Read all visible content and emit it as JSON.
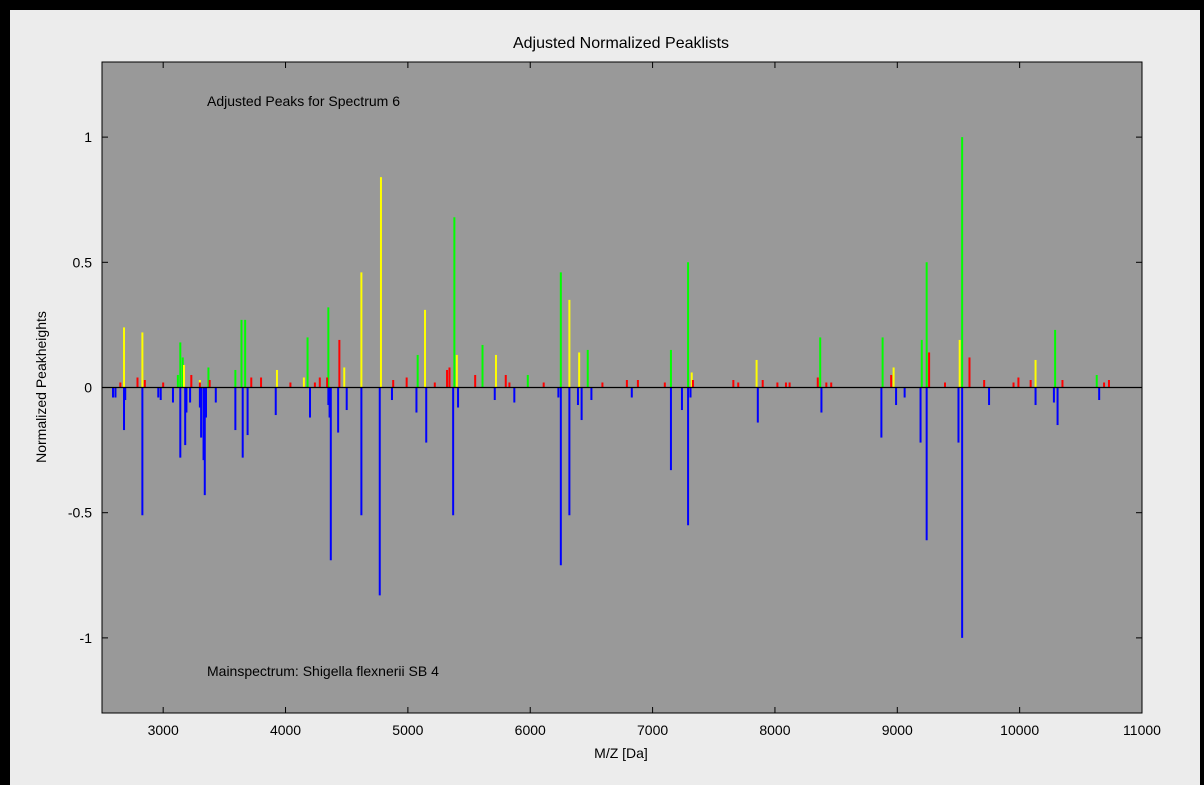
{
  "chart_data": {
    "type": "bar",
    "title": "Adjusted Normalized Peaklists",
    "xlabel": "M/Z [Da]",
    "ylabel": "Normalized Peakheights",
    "xlim": [
      2500,
      11000
    ],
    "ylim": [
      -1.3,
      1.3
    ],
    "xticks": [
      "3000",
      "4000",
      "5000",
      "6000",
      "7000",
      "8000",
      "9000",
      "10000",
      "11000"
    ],
    "xtick_values": [
      3000,
      4000,
      5000,
      6000,
      7000,
      8000,
      9000,
      10000,
      11000
    ],
    "yticks": [
      "1",
      "0.5",
      "0",
      "-0.5",
      "-1"
    ],
    "ytick_values": [
      1,
      0.5,
      0,
      -0.5,
      -1
    ],
    "grid": false,
    "annotations": {
      "top": "Adjusted Peaks for Spectrum 6",
      "bottom": "Mainspectrum: Shigella flexnerii SB 4"
    },
    "background_color": "#999999",
    "series": [
      {
        "color": "#00ff00",
        "x": [
          3120,
          3140,
          3160,
          3370,
          3590,
          3640,
          3670,
          4180,
          4350,
          5080,
          5380,
          5610,
          5980,
          6250,
          6470,
          7150,
          7290,
          8370,
          8880,
          9200,
          9240,
          9530,
          10290,
          10630
        ],
        "y": [
          0.05,
          0.18,
          0.12,
          0.08,
          0.07,
          0.27,
          0.27,
          0.2,
          0.32,
          0.13,
          0.68,
          0.17,
          0.05,
          0.46,
          0.15,
          0.15,
          0.5,
          0.2,
          0.2,
          0.19,
          0.5,
          1.0,
          0.23,
          0.05
        ]
      },
      {
        "color": "#ffff00",
        "x": [
          2680,
          2830,
          3170,
          3300,
          3930,
          4150,
          4480,
          4620,
          4780,
          5140,
          5400,
          5720,
          6320,
          6400,
          7320,
          7850,
          8970,
          9510,
          10130
        ],
        "y": [
          0.24,
          0.22,
          0.09,
          0.03,
          0.07,
          0.04,
          0.08,
          0.46,
          0.84,
          0.31,
          0.13,
          0.13,
          0.35,
          0.14,
          0.06,
          0.11,
          0.08,
          0.19,
          0.11
        ]
      },
      {
        "color": "#ff0000",
        "x": [
          2650,
          2790,
          2850,
          3000,
          3230,
          3300,
          3380,
          3720,
          3800,
          4040,
          4240,
          4280,
          4340,
          4440,
          4880,
          4990,
          5220,
          5320,
          5340,
          5550,
          5800,
          5830,
          6110,
          6590,
          6790,
          6880,
          7100,
          7330,
          7660,
          7700,
          7900,
          8020,
          8090,
          8120,
          8350,
          8420,
          8460,
          8950,
          9260,
          9390,
          9590,
          9710,
          9950,
          9990,
          10090,
          10350,
          10690,
          10730
        ],
        "y": [
          0.02,
          0.04,
          0.03,
          0.02,
          0.05,
          0.02,
          0.03,
          0.04,
          0.04,
          0.02,
          0.02,
          0.04,
          0.04,
          0.19,
          0.03,
          0.04,
          0.02,
          0.07,
          0.08,
          0.05,
          0.05,
          0.02,
          0.02,
          0.02,
          0.03,
          0.03,
          0.02,
          0.03,
          0.03,
          0.02,
          0.03,
          0.02,
          0.02,
          0.02,
          0.04,
          0.02,
          0.02,
          0.05,
          0.14,
          0.02,
          0.12,
          0.03,
          0.02,
          0.04,
          0.03,
          0.03,
          0.02,
          0.03
        ]
      },
      {
        "color": "#0000ff",
        "x": [
          2590,
          2610,
          2680,
          2690,
          2830,
          2960,
          2980,
          3080,
          3140,
          3180,
          3190,
          3220,
          3300,
          3310,
          3330,
          3340,
          3350,
          3430,
          3590,
          3650,
          3690,
          3920,
          4200,
          4350,
          4360,
          4370,
          4430,
          4500,
          4620,
          4770,
          4870,
          5070,
          5150,
          5370,
          5410,
          5710,
          5870,
          6230,
          6250,
          6320,
          6390,
          6420,
          6500,
          6830,
          7150,
          7240,
          7290,
          7310,
          7860,
          8380,
          8870,
          8990,
          9060,
          9190,
          9240,
          9500,
          9530,
          9750,
          10130,
          10280,
          10310,
          10650
        ],
        "y": [
          -0.04,
          -0.04,
          -0.17,
          -0.05,
          -0.51,
          -0.04,
          -0.05,
          -0.06,
          -0.28,
          -0.23,
          -0.1,
          -0.06,
          -0.08,
          -0.2,
          -0.29,
          -0.43,
          -0.12,
          -0.06,
          -0.17,
          -0.28,
          -0.19,
          -0.11,
          -0.12,
          -0.07,
          -0.12,
          -0.69,
          -0.18,
          -0.09,
          -0.51,
          -0.83,
          -0.05,
          -0.1,
          -0.22,
          -0.51,
          -0.08,
          -0.05,
          -0.06,
          -0.04,
          -0.71,
          -0.51,
          -0.07,
          -0.13,
          -0.05,
          -0.04,
          -0.33,
          -0.09,
          -0.55,
          -0.04,
          -0.14,
          -0.1,
          -0.2,
          -0.07,
          -0.04,
          -0.22,
          -0.61,
          -0.22,
          -1.0,
          -0.07,
          -0.07,
          -0.06,
          -0.15,
          -0.05
        ]
      }
    ]
  }
}
